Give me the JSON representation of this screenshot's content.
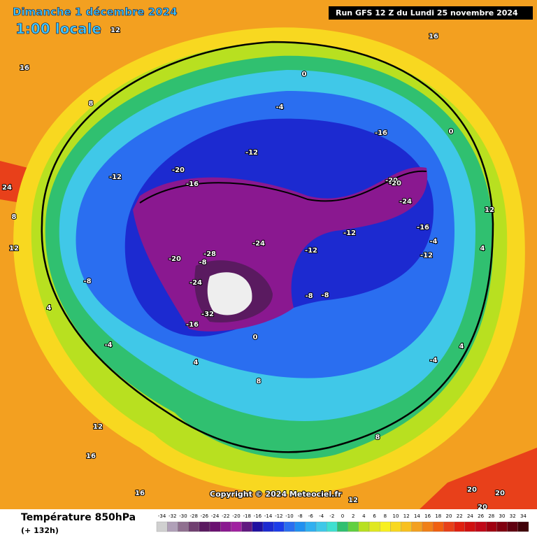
{
  "header": {
    "date": "Dimanche 1 décembre 2024",
    "time": "1:00 locale",
    "run": "Run GFS 12 Z du Lundi 25 novembre 2024"
  },
  "map": {
    "copyright": "Copyright © 2024 Meteociel.fr",
    "labels": [
      "16",
      "16",
      "12",
      "12",
      "8",
      "8",
      "4",
      "4",
      "0",
      "0",
      "-4",
      "-4",
      "-8",
      "-8",
      "-12",
      "-12",
      "-16",
      "-16",
      "-20",
      "-20",
      "-24",
      "-24",
      "-28",
      "-32",
      "-16",
      "-12",
      "-8",
      "-4",
      "0",
      "4",
      "8",
      "12",
      "16",
      "20",
      "24",
      "20",
      "20",
      "-20",
      "-24",
      "-16",
      "-12",
      "-8",
      "-4",
      "4",
      "8",
      "12",
      "16",
      "12",
      "-12",
      "-20"
    ]
  },
  "footer": {
    "title": "Température 850hPa",
    "lead": "(+ 132h)",
    "scale": [
      -34,
      -32,
      -30,
      -28,
      -26,
      -24,
      -22,
      -20,
      -18,
      -16,
      -14,
      -12,
      -10,
      -8,
      -6,
      -4,
      -2,
      0,
      2,
      4,
      6,
      8,
      10,
      12,
      14,
      16,
      18,
      20,
      22,
      24,
      26,
      28,
      30,
      32,
      34
    ]
  }
}
